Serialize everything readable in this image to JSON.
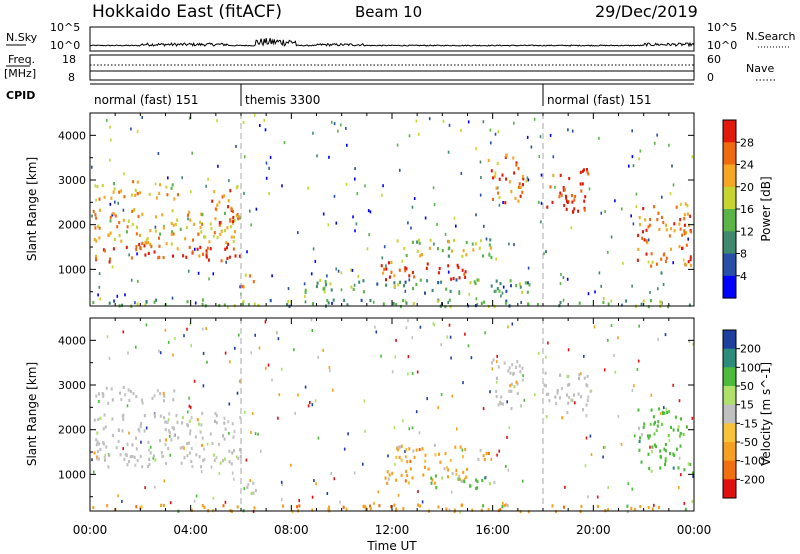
{
  "header": {
    "station": "Hokkaido East (fitACF)",
    "beam": "Beam 10",
    "date": "29/Dec/2019"
  },
  "noise_panel": {
    "left_label": "N.Sky",
    "right_label": "N.Search",
    "left_ticks": [
      "10^5",
      "10^0"
    ],
    "right_ticks": [
      "10^5",
      "10^0"
    ]
  },
  "freq_panel": {
    "left_label_top": "Freq.",
    "left_label_bottom": "[MHz]",
    "right_label": "Nave",
    "left_ticks": [
      "18",
      "8"
    ],
    "right_ticks": [
      "60",
      "0"
    ]
  },
  "cpid_panel": {
    "label": "CPID",
    "segments": [
      {
        "name": "normal (fast) 151",
        "start_hour": 0,
        "end_hour": 6
      },
      {
        "name": "themis 3300",
        "start_hour": 6,
        "end_hour": 18
      },
      {
        "name": "normal (fast) 151",
        "start_hour": 18,
        "end_hour": 24
      }
    ]
  },
  "chart_data": [
    {
      "type": "heatmap",
      "title": "",
      "xlabel": "Time UT",
      "ylabel": "Slant Range [km]",
      "xlim": [
        0,
        24
      ],
      "ylim": [
        180,
        4500
      ],
      "yticks": [
        "1000",
        "2000",
        "3000",
        "4000"
      ],
      "colorbar": {
        "label": "Power [dB]",
        "ticks": [
          "4",
          "8",
          "12",
          "16",
          "20",
          "24",
          "28"
        ],
        "range": [
          0,
          32
        ],
        "colors": [
          "#0000ff",
          "#2850a8",
          "#3f8a6e",
          "#5ab448",
          "#c8d430",
          "#f5a623",
          "#f06a10",
          "#e01b0b"
        ]
      },
      "regions": [
        {
          "t0": 0.1,
          "t1": 6.0,
          "r0": 1200,
          "r1": 1600,
          "level": 7
        },
        {
          "t0": 0.1,
          "t1": 6.0,
          "r0": 1600,
          "r1": 2400,
          "level": 5
        },
        {
          "t0": 0.2,
          "t1": 3.5,
          "r0": 2600,
          "r1": 3000,
          "level": 5
        },
        {
          "t0": 4.8,
          "t1": 6.0,
          "r0": 2000,
          "r1": 2900,
          "level": 6
        },
        {
          "t0": 6.0,
          "t1": 6.6,
          "r0": 600,
          "r1": 950,
          "level": 6
        },
        {
          "t0": 8.5,
          "t1": 17.5,
          "r0": 500,
          "r1": 800,
          "level": 3
        },
        {
          "t0": 11.5,
          "t1": 15.0,
          "r0": 800,
          "r1": 1200,
          "level": 7
        },
        {
          "t0": 12.0,
          "t1": 16.0,
          "r0": 1300,
          "r1": 1700,
          "level": 4
        },
        {
          "t0": 15.8,
          "t1": 17.2,
          "r0": 2500,
          "r1": 3600,
          "level": 6
        },
        {
          "t0": 18.0,
          "t1": 19.8,
          "r0": 2300,
          "r1": 3300,
          "level": 7
        },
        {
          "t0": 21.7,
          "t1": 23.9,
          "r0": 1100,
          "r1": 2500,
          "level": 6
        },
        {
          "t0": 0.0,
          "t1": 24.0,
          "r0": 200,
          "r1": 350,
          "level": 3
        }
      ],
      "boundaries_hour": [
        6,
        18
      ]
    },
    {
      "type": "heatmap",
      "title": "",
      "xlabel": "Time UT",
      "ylabel": "Slant Range [km]",
      "xlim": [
        0,
        24
      ],
      "ylim": [
        180,
        4500
      ],
      "xticks": [
        "00:00",
        "04:00",
        "08:00",
        "12:00",
        "16:00",
        "20:00",
        "00:00"
      ],
      "yticks": [
        "1000",
        "2000",
        "3000",
        "4000"
      ],
      "colorbar": {
        "label": "Velocity [m s^-1]",
        "ticks": [
          "200",
          "100",
          "50",
          "15",
          "-15",
          "-50",
          "-100",
          "-200"
        ],
        "colors": [
          "#1f3f9f",
          "#2c8c7c",
          "#4cbb3c",
          "#aee06b",
          "#c0c0c0",
          "#f7c33a",
          "#f5a020",
          "#f07010",
          "#e01010"
        ]
      },
      "regions": [
        {
          "t0": 0.1,
          "t1": 6.0,
          "r0": 1200,
          "r1": 2400,
          "class": "grey"
        },
        {
          "t0": 0.2,
          "t1": 3.5,
          "r0": 2600,
          "r1": 3000,
          "class": "grey"
        },
        {
          "t0": 6.0,
          "t1": 6.6,
          "r0": 600,
          "r1": 950,
          "class": "grey"
        },
        {
          "t0": 11.5,
          "t1": 15.0,
          "r0": 800,
          "r1": 1200,
          "class": "orange"
        },
        {
          "t0": 13.5,
          "t1": 16.5,
          "r0": 700,
          "r1": 1000,
          "class": "green"
        },
        {
          "t0": 12.0,
          "t1": 16.0,
          "r0": 1300,
          "r1": 1700,
          "class": "orange"
        },
        {
          "t0": 15.8,
          "t1": 17.2,
          "r0": 2500,
          "r1": 3600,
          "class": "grey"
        },
        {
          "t0": 18.0,
          "t1": 19.8,
          "r0": 2300,
          "r1": 3300,
          "class": "grey"
        },
        {
          "t0": 21.7,
          "t1": 23.9,
          "r0": 1100,
          "r1": 2500,
          "class": "green"
        },
        {
          "t0": 0.0,
          "t1": 24.0,
          "r0": 200,
          "r1": 350,
          "class": "orange"
        }
      ],
      "boundaries_hour": [
        6,
        18
      ]
    }
  ]
}
